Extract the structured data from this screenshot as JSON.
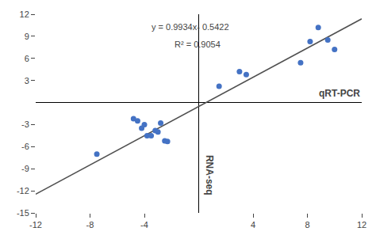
{
  "chart_data": {
    "type": "scatter",
    "xlabel": "qRT-PCR",
    "ylabel": "RNA-seq",
    "annotations": [
      "y = 0.9934x- 0.5422",
      "R² = 0.9054"
    ],
    "series": [
      {
        "type": "line",
        "color": "#505050",
        "x": [
          -12,
          12
        ],
        "values": [
          -12.463,
          11.3786
        ]
      },
      {
        "type": "scatter",
        "color": "#4472C4",
        "x": [
          -7.5,
          -4.8,
          -4.5,
          -4.2,
          -4.0,
          -3.8,
          -3.5,
          -3.2,
          -3.0,
          -2.8,
          -2.5,
          -2.3,
          1.5,
          3.0,
          3.5,
          7.5,
          8.2,
          8.8,
          9.5,
          10.0
        ],
        "values": [
          -7.0,
          -2.2,
          -2.5,
          -3.5,
          -3.0,
          -4.5,
          -4.5,
          -3.8,
          -4.0,
          -2.8,
          -5.2,
          -5.3,
          2.2,
          4.2,
          3.8,
          5.4,
          8.3,
          10.2,
          8.5,
          7.2
        ]
      }
    ],
    "xlim": [
      -12,
      12
    ],
    "ylim": [
      -15,
      12
    ],
    "xticks": [
      -12,
      -8,
      -4,
      4,
      8,
      12
    ],
    "yticks": [
      -15,
      -12,
      -9,
      -6,
      -3,
      3,
      6,
      9,
      12
    ],
    "grid": false,
    "background_color": "#ffffff"
  }
}
